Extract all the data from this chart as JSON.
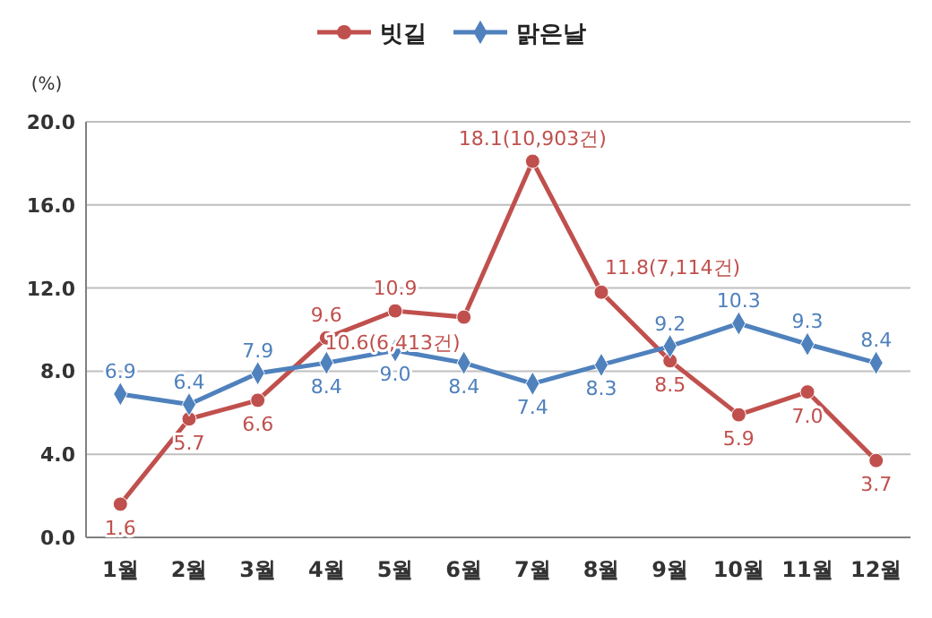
{
  "chart_data": {
    "type": "line",
    "ylabel": "(%)",
    "categories": [
      "1월",
      "2월",
      "3월",
      "4월",
      "5월",
      "6월",
      "7월",
      "8월",
      "9월",
      "10월",
      "11월",
      "12월"
    ],
    "ylim": [
      0,
      20
    ],
    "yticks": [
      {
        "value": 0,
        "label": "0.0"
      },
      {
        "value": 4,
        "label": "4.0"
      },
      {
        "value": 8,
        "label": "8.0"
      },
      {
        "value": 12,
        "label": "12.0"
      },
      {
        "value": 16,
        "label": "16.0"
      },
      {
        "value": 20,
        "label": "20.0"
      }
    ],
    "grid": "y",
    "legend": "top",
    "line_style": "solid",
    "series": [
      {
        "name": "빗길",
        "color": "#c0504d",
        "marker": "circle",
        "values": [
          1.6,
          5.7,
          6.6,
          9.6,
          10.9,
          10.6,
          18.1,
          11.8,
          8.5,
          5.9,
          7.0,
          3.7
        ],
        "value_labels": [
          "1.6",
          "5.7",
          "6.6",
          "9.6",
          "10.9",
          "10.6(6,413건)",
          "18.1(10,903건)",
          "11.8(7,114건)",
          "8.5",
          "5.9",
          "7.0",
          "3.7"
        ]
      },
      {
        "name": "맑은날",
        "color": "#4f81bd",
        "marker": "diamond",
        "values": [
          6.9,
          6.4,
          7.9,
          8.4,
          9.0,
          8.4,
          7.4,
          8.3,
          9.2,
          10.3,
          9.3,
          8.4
        ],
        "value_labels": [
          "6.9",
          "6.4",
          "7.9",
          "8.4",
          "9.0",
          "8.4",
          "7.4",
          "8.3",
          "9.2",
          "10.3",
          "9.3",
          "8.4"
        ]
      }
    ]
  }
}
